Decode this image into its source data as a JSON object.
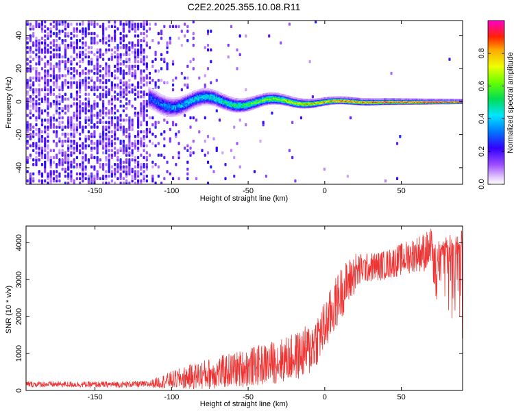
{
  "figure_title": "C2E2.2025.355.10.08.R11",
  "chart_data": [
    {
      "type": "heatmap",
      "title": "C2E2.2025.355.10.08.R11",
      "xlabel": "Height of straight line (km)",
      "ylabel": "Frequency (Hz)",
      "xlim": [
        -195,
        90
      ],
      "ylim": [
        -50,
        49
      ],
      "x_ticks": [
        -150,
        -100,
        -50,
        0,
        50
      ],
      "y_ticks": [
        -40,
        -20,
        0,
        20,
        40
      ],
      "x_tick_labels": [
        "-150",
        "-100",
        "-50",
        "0",
        "50"
      ],
      "y_tick_labels": [
        "-40",
        "-20",
        "0",
        "20",
        "40"
      ],
      "colorbar": {
        "label": "Normalized spectral amplitude",
        "range": [
          0,
          1
        ],
        "ticks": [
          0.0,
          0.2,
          0.4,
          0.6,
          0.8
        ],
        "tick_labels": [
          "0.0",
          "0.2",
          "0.4",
          "0.6",
          "0.8"
        ]
      },
      "description_points": [
        {
          "x": -195,
          "noise_amplitude": 0.15
        },
        {
          "x": -115,
          "noise_amplitude": 0.12
        },
        {
          "x": -115,
          "signal_band_halfwidth_hz": 6,
          "signal_amplitude": 0.3
        },
        {
          "x": -60,
          "signal_band_halfwidth_hz": 4,
          "signal_amplitude": 0.5
        },
        {
          "x": 0,
          "signal_band_halfwidth_hz": 2,
          "signal_amplitude": 0.8
        },
        {
          "x": 90,
          "signal_band_halfwidth_hz": 1,
          "signal_amplitude": 1.0
        }
      ]
    },
    {
      "type": "line",
      "xlabel": "Height of straight line (km)",
      "ylabel": "SNR (10 * v/v)",
      "xlim": [
        -195,
        90
      ],
      "ylim": [
        0,
        4450
      ],
      "x_ticks": [
        -150,
        -100,
        -50,
        0,
        50
      ],
      "y_ticks": [
        0,
        1000,
        2000,
        3000,
        4000
      ],
      "x_tick_labels": [
        "-150",
        "-100",
        "-50",
        "0",
        "50"
      ],
      "y_tick_labels": [
        "0",
        "1000",
        "2000",
        "3000",
        "4000"
      ],
      "color": "#ee3333",
      "trend_x": [
        -195,
        -150,
        -115,
        -100,
        -80,
        -60,
        -40,
        -20,
        -10,
        0,
        10,
        20,
        25,
        40,
        60,
        80,
        90
      ],
      "trend_y": [
        170,
        160,
        170,
        280,
        420,
        550,
        700,
        900,
        1100,
        1700,
        2600,
        3200,
        3300,
        3400,
        3700,
        3900,
        4000
      ],
      "noise_amplitude": [
        100,
        100,
        110,
        300,
        500,
        600,
        700,
        800,
        900,
        900,
        900,
        700,
        500,
        500,
        600,
        900,
        1400
      ]
    }
  ]
}
